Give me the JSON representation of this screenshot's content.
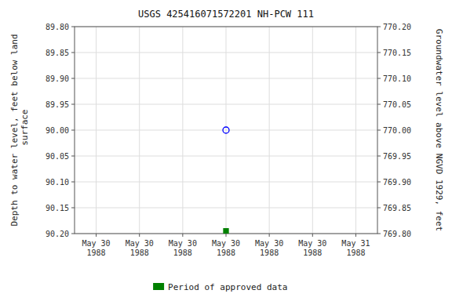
{
  "chart_data": {
    "type": "scatter",
    "title": "USGS 425416071572201 NH-PCW  111",
    "y_label": "Depth to water level, feet below land\n surface",
    "y2_label": "Groundwater level above NGVD 1929, feet",
    "categories": [
      "May 30\n1988",
      "May 30\n1988",
      "May 30\n1988",
      "May 30\n1988",
      "May 30\n1988",
      "May 30\n1988",
      "May 31\n1988"
    ],
    "ylim": [
      90.2,
      89.8
    ],
    "yticks": [
      {
        "value": 89.8,
        "label": "89.80"
      },
      {
        "value": 89.85,
        "label": "89.85"
      },
      {
        "value": 89.9,
        "label": "89.90"
      },
      {
        "value": 89.95,
        "label": "89.95"
      },
      {
        "value": 90.0,
        "label": "90.00"
      },
      {
        "value": 90.05,
        "label": "90.05"
      },
      {
        "value": 90.1,
        "label": "90.10"
      },
      {
        "value": 90.15,
        "label": "90.15"
      },
      {
        "value": 90.2,
        "label": "90.20"
      }
    ],
    "y2lim": [
      769.8,
      770.2
    ],
    "y2ticks": [
      {
        "value": 770.2,
        "label": "770.20"
      },
      {
        "value": 770.15,
        "label": "770.15"
      },
      {
        "value": 770.1,
        "label": "770.10"
      },
      {
        "value": 770.05,
        "label": "770.05"
      },
      {
        "value": 770.0,
        "label": "770.00"
      },
      {
        "value": 769.95,
        "label": "769.95"
      },
      {
        "value": 769.9,
        "label": "769.90"
      },
      {
        "value": 769.85,
        "label": "769.85"
      },
      {
        "value": 769.8,
        "label": "769.80"
      }
    ],
    "grid": true,
    "legend": "bottom",
    "series": [
      {
        "color": "blue",
        "marker": "open-circle",
        "values": [
          null,
          null,
          null,
          90.0,
          null,
          null,
          null
        ]
      },
      {
        "name": "Period of approved data",
        "color": "green",
        "marker": "square",
        "values": [
          null,
          null,
          null,
          90.195,
          null,
          null,
          null
        ]
      }
    ]
  }
}
